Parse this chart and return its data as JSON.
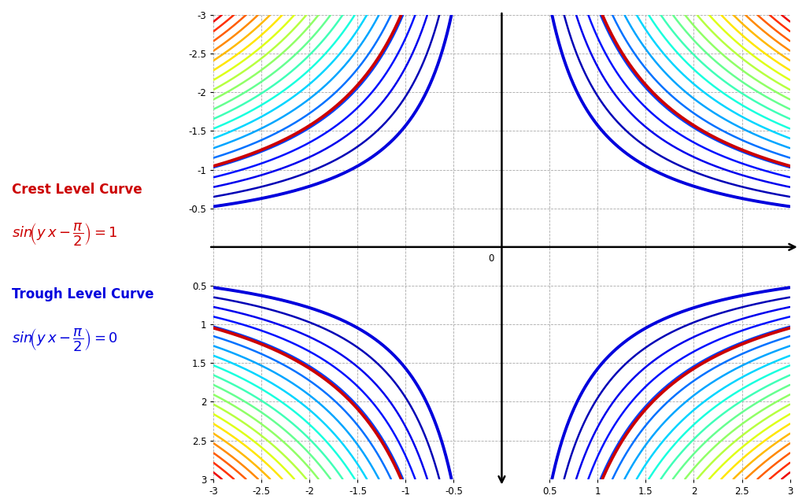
{
  "xlim": [
    -3,
    3
  ],
  "ylim": [
    -3,
    3
  ],
  "xlabel_ticks": [
    -3,
    -2.5,
    -2,
    -1.5,
    -1,
    -0.5,
    0,
    0.5,
    1,
    1.5,
    2,
    2.5,
    3
  ],
  "ylabel_ticks_neg": [
    -3,
    -2.5,
    -2,
    -1.5,
    -1,
    -0.5
  ],
  "ylabel_ticks_pos": [
    0.5,
    1,
    1.5,
    2,
    2.5,
    3
  ],
  "background_color": "#ffffff",
  "grid_color": "#aaaaaa",
  "crest_label": "Crest Level Curve",
  "trough_label": "Trough Level Curve",
  "crest_color": "#cc0000",
  "trough_color": "#0000dd",
  "curve_linewidth": 1.8,
  "special_linewidth": 2.8,
  "figsize": [
    10.24,
    6.34
  ],
  "dpi": 100,
  "K_crest": 3.14159265358979,
  "K_trough": 1.5707963267949,
  "K_min": 1.5707963267949,
  "K_max": 9.5,
  "n_curves": 22
}
